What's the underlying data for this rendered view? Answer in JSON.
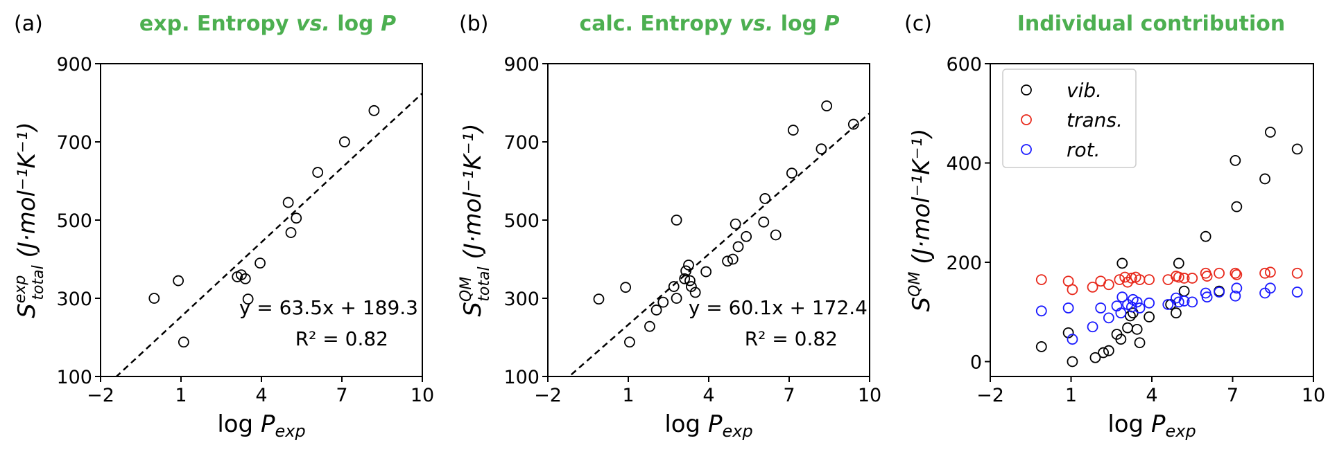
{
  "colors": {
    "title_green": "#4caf50",
    "vib": "#000000",
    "trans": "#e8291c",
    "rot": "#1a1aff"
  },
  "chart_data": [
    {
      "type": "scatter",
      "panel": "(a)",
      "title_parts": [
        "exp. Entropy ",
        "vs.",
        " log ",
        "P"
      ],
      "xlabel": {
        "main": "log P",
        "sub": "exp"
      },
      "ylabel": {
        "main": "S",
        "sup": "exp",
        "sub": "total",
        "units": "(J·mol⁻¹K⁻¹)"
      },
      "xlim": [
        -2,
        10
      ],
      "ylim": [
        100,
        900
      ],
      "xticks": [
        -2,
        1,
        4,
        7,
        10
      ],
      "xtick_labels": [
        "−2",
        "1",
        "4",
        "7",
        "10"
      ],
      "yticks": [
        100,
        300,
        500,
        700,
        900
      ],
      "ytick_labels": [
        "100",
        "300",
        "500",
        "700",
        "900"
      ],
      "fit": {
        "slope": 63.5,
        "intercept": 189.3,
        "equation": "y = 63.5x + 189.3",
        "r2_label": "R² = 0.82"
      },
      "series": [
        {
          "x": [
            0.0,
            0.9,
            1.1,
            3.1,
            3.25,
            3.4,
            3.5,
            3.95,
            5.0,
            5.1,
            5.3,
            6.1,
            7.1,
            8.2
          ],
          "y": [
            300,
            345,
            188,
            355,
            360,
            350,
            298,
            390,
            545,
            468,
            505,
            622,
            700,
            780
          ]
        }
      ]
    },
    {
      "type": "scatter",
      "panel": "(b)",
      "title_parts": [
        "calc. Entropy ",
        "vs.",
        " log ",
        "P"
      ],
      "xlabel": {
        "main": "log P",
        "sub": "exp"
      },
      "ylabel": {
        "main": "S",
        "sup": "QM",
        "sub": "total",
        "units": "(J·mol⁻¹K⁻¹)"
      },
      "xlim": [
        -2,
        10
      ],
      "ylim": [
        100,
        900
      ],
      "xticks": [
        -2,
        1,
        4,
        7,
        10
      ],
      "xtick_labels": [
        "−2",
        "1",
        "4",
        "7",
        "10"
      ],
      "yticks": [
        100,
        300,
        500,
        700,
        900
      ],
      "ytick_labels": [
        "100",
        "300",
        "500",
        "700",
        "900"
      ],
      "fit": {
        "slope": 60.1,
        "intercept": 172.4,
        "equation": "y = 60.1x + 172.4",
        "r2_label": "R² = 0.82"
      },
      "series": [
        {
          "x": [
            -0.1,
            0.9,
            1.05,
            1.8,
            2.05,
            2.3,
            2.7,
            2.8,
            2.8,
            3.1,
            3.15,
            3.25,
            3.3,
            3.35,
            3.5,
            3.9,
            4.7,
            4.9,
            5.0,
            5.1,
            5.4,
            6.1,
            6.05,
            6.5,
            7.1,
            7.15,
            8.2,
            8.4,
            9.4
          ],
          "y": [
            298,
            328,
            188,
            228,
            270,
            290,
            330,
            300,
            500,
            350,
            370,
            385,
            345,
            330,
            315,
            368,
            395,
            400,
            490,
            432,
            458,
            555,
            495,
            462,
            620,
            730,
            682,
            792,
            745
          ]
        }
      ]
    },
    {
      "type": "scatter",
      "panel": "(c)",
      "title_parts": [
        "Individual contribution"
      ],
      "xlabel": {
        "main": "log P",
        "sub": "exp"
      },
      "ylabel": {
        "main": "S",
        "sup": "QM",
        "sub": "",
        "units": "(J·mol⁻¹K⁻¹)"
      },
      "xlim": [
        -2,
        10
      ],
      "ylim": [
        -30,
        600
      ],
      "xticks": [
        -2,
        1,
        4,
        7,
        10
      ],
      "xtick_labels": [
        "−2",
        "1",
        "4",
        "7",
        "10"
      ],
      "yticks": [
        0,
        200,
        400,
        600
      ],
      "ytick_labels": [
        "0",
        "200",
        "400",
        "600"
      ],
      "legend": {
        "position": "upper left",
        "entries": [
          "vib.",
          "trans.",
          "rot."
        ]
      },
      "series": [
        {
          "name": "vib.",
          "color": "#000000",
          "x": [
            -0.1,
            0.9,
            1.05,
            1.9,
            2.2,
            2.4,
            2.7,
            2.85,
            2.9,
            3.1,
            3.2,
            3.3,
            3.45,
            3.55,
            3.9,
            4.7,
            4.9,
            5.0,
            5.2,
            6.0,
            6.5,
            7.1,
            7.15,
            8.2,
            8.4,
            9.4
          ],
          "y": [
            30,
            58,
            0,
            8,
            18,
            22,
            55,
            45,
            198,
            68,
            92,
            98,
            65,
            38,
            90,
            115,
            98,
            198,
            142,
            252,
            142,
            405,
            312,
            368,
            462,
            428
          ]
        },
        {
          "name": "trans.",
          "color": "#e8291c",
          "x": [
            -0.1,
            0.9,
            1.05,
            1.8,
            2.1,
            2.4,
            2.8,
            3.0,
            3.1,
            3.25,
            3.4,
            3.55,
            3.9,
            4.6,
            4.9,
            5.0,
            5.2,
            5.5,
            6.0,
            6.05,
            6.5,
            7.1,
            7.15,
            8.2,
            8.4,
            9.4
          ],
          "y": [
            165,
            162,
            145,
            150,
            162,
            155,
            165,
            170,
            160,
            168,
            170,
            165,
            165,
            165,
            172,
            170,
            168,
            168,
            178,
            172,
            178,
            178,
            175,
            178,
            180,
            178
          ]
        },
        {
          "name": "rot.",
          "color": "#1a1aff",
          "x": [
            -0.1,
            0.9,
            1.05,
            1.8,
            2.1,
            2.4,
            2.7,
            2.85,
            2.9,
            3.1,
            3.25,
            3.3,
            3.45,
            3.55,
            3.9,
            4.6,
            4.9,
            5.0,
            5.2,
            5.5,
            6.0,
            6.05,
            6.5,
            7.1,
            7.15,
            8.2,
            8.4,
            9.4
          ],
          "y": [
            102,
            108,
            45,
            70,
            108,
            88,
            112,
            98,
            130,
            115,
            110,
            125,
            120,
            108,
            118,
            115,
            128,
            120,
            122,
            120,
            138,
            130,
            140,
            132,
            148,
            138,
            148,
            140
          ]
        }
      ]
    }
  ]
}
